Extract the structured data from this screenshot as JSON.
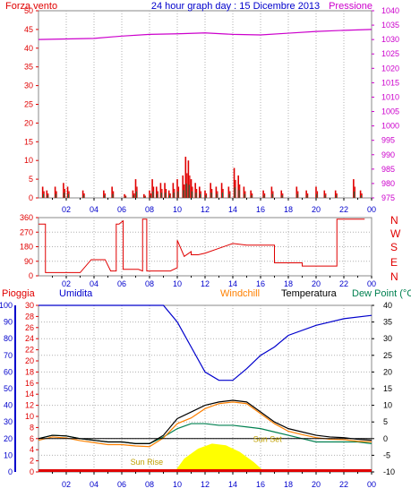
{
  "colors": {
    "wind": "#e00000",
    "pressure": "#cc00cc",
    "title": "#0000cc",
    "rain": "#e00000",
    "humidity": "#0000cc",
    "windchill": "#ff8000",
    "temperature": "#000000",
    "dewpoint": "#008050",
    "sun": "#ffff00",
    "sun_label": "#c0a000",
    "grid": "#b0b0b0",
    "axis": "#000000",
    "x_tick_label": "#0000cc"
  },
  "labels": {
    "left_top": "Forza vento",
    "title": "24 hour graph day : 15 Dicembre 2013",
    "right_top": "Pressione",
    "dir_N_top": "N",
    "dir_W": "W",
    "dir_S": "S",
    "dir_E": "E",
    "dir_N_bottom": "N",
    "pioggia": "Pioggia",
    "umidita": "Umidita",
    "windchill": "Windchill",
    "temperatura": "Temperatura",
    "dewpoint": "Dew Point (°C",
    "sun_rise": "Sun Rise",
    "sun_set": "Sun Set"
  },
  "chart_data": [
    {
      "type": "bar",
      "panel": "wind-pressure",
      "title": "24 hour graph day : 15 Dicembre 2013",
      "x_ticks": [
        "02",
        "04",
        "06",
        "08",
        "10",
        "12",
        "14",
        "16",
        "18",
        "20",
        "22",
        "00"
      ],
      "ylabel_left": "Forza vento",
      "ylim_left": [
        0,
        50
      ],
      "yticks_left": [
        0,
        5,
        10,
        15,
        20,
        25,
        30,
        35,
        40,
        45,
        50
      ],
      "ylabel_right": "Pressione",
      "ylim_right": [
        975,
        1040
      ],
      "yticks_right": [
        975,
        980,
        985,
        990,
        995,
        1000,
        1005,
        1010,
        1015,
        1020,
        1025,
        1030,
        1035,
        1040
      ],
      "wind_gust_bursts": [
        {
          "hour": 0.3,
          "value": 3
        },
        {
          "hour": 0.6,
          "value": 2
        },
        {
          "hour": 1.2,
          "value": 3
        },
        {
          "hour": 1.8,
          "value": 4
        },
        {
          "hour": 2.1,
          "value": 3
        },
        {
          "hour": 3.2,
          "value": 2
        },
        {
          "hour": 4.7,
          "value": 2
        },
        {
          "hour": 5.3,
          "value": 3
        },
        {
          "hour": 6.2,
          "value": 1
        },
        {
          "hour": 6.8,
          "value": 2
        },
        {
          "hour": 7.0,
          "value": 5
        },
        {
          "hour": 7.6,
          "value": 1
        },
        {
          "hour": 8.0,
          "value": 2
        },
        {
          "hour": 8.2,
          "value": 5
        },
        {
          "hour": 8.5,
          "value": 3
        },
        {
          "hour": 8.8,
          "value": 4
        },
        {
          "hour": 9.1,
          "value": 4
        },
        {
          "hour": 9.4,
          "value": 2
        },
        {
          "hour": 9.7,
          "value": 4
        },
        {
          "hour": 10.0,
          "value": 5
        },
        {
          "hour": 10.4,
          "value": 6
        },
        {
          "hour": 10.6,
          "value": 11
        },
        {
          "hour": 10.8,
          "value": 10
        },
        {
          "hour": 11.0,
          "value": 5
        },
        {
          "hour": 11.3,
          "value": 4
        },
        {
          "hour": 11.6,
          "value": 3
        },
        {
          "hour": 12.0,
          "value": 2
        },
        {
          "hour": 12.4,
          "value": 4
        },
        {
          "hour": 12.8,
          "value": 3
        },
        {
          "hour": 13.2,
          "value": 4
        },
        {
          "hour": 13.7,
          "value": 3
        },
        {
          "hour": 14.1,
          "value": 8
        },
        {
          "hour": 14.4,
          "value": 6
        },
        {
          "hour": 14.8,
          "value": 3
        },
        {
          "hour": 15.3,
          "value": 2
        },
        {
          "hour": 16.2,
          "value": 2
        },
        {
          "hour": 16.8,
          "value": 3
        },
        {
          "hour": 17.5,
          "value": 2
        },
        {
          "hour": 18.6,
          "value": 3
        },
        {
          "hour": 19.3,
          "value": 2
        },
        {
          "hour": 20.0,
          "value": 3
        },
        {
          "hour": 20.6,
          "value": 2
        },
        {
          "hour": 21.4,
          "value": 2
        },
        {
          "hour": 22.7,
          "value": 5
        },
        {
          "hour": 23.2,
          "value": 2
        }
      ],
      "pressure": [
        {
          "hour": 0,
          "value": 1030
        },
        {
          "hour": 2,
          "value": 1030.2
        },
        {
          "hour": 4,
          "value": 1030.4
        },
        {
          "hour": 6,
          "value": 1031.2
        },
        {
          "hour": 8,
          "value": 1031.8
        },
        {
          "hour": 10,
          "value": 1032
        },
        {
          "hour": 12,
          "value": 1032.3
        },
        {
          "hour": 14,
          "value": 1031.8
        },
        {
          "hour": 16,
          "value": 1031.6
        },
        {
          "hour": 18,
          "value": 1032.2
        },
        {
          "hour": 20,
          "value": 1032.8
        },
        {
          "hour": 22,
          "value": 1033.2
        },
        {
          "hour": 24,
          "value": 1033.5
        }
      ]
    },
    {
      "type": "line",
      "panel": "wind-direction",
      "ylim": [
        0,
        360
      ],
      "yticks": [
        0,
        90,
        180,
        270,
        360
      ],
      "direction_labels": [
        "N",
        "W",
        "S",
        "E",
        "N"
      ],
      "series": [
        {
          "name": "",
          "x": [
            0,
            0.5,
            0.5,
            1.5,
            2.0,
            3.0,
            3.8,
            4.2,
            4.5,
            4.8,
            5.2,
            5.6,
            5.6,
            5.8,
            6.1,
            6.1,
            6.5,
            6.6,
            7.2,
            7.5,
            7.5,
            7.8,
            7.8,
            8.0,
            8.0,
            9.5,
            10.0,
            10.0,
            10.5,
            11.0,
            11.0,
            11.5,
            12.0,
            12.0,
            13.0,
            13.0,
            14.0,
            14.0,
            15.0,
            17.0,
            17.0,
            19.0,
            19.0,
            21.5,
            21.5,
            23.0,
            23.5
          ],
          "y": [
            320,
            320,
            20,
            20,
            20,
            20,
            100,
            100,
            100,
            100,
            30,
            30,
            320,
            320,
            340,
            40,
            40,
            40,
            40,
            30,
            350,
            350,
            30,
            30,
            30,
            30,
            50,
            220,
            120,
            150,
            130,
            130,
            140,
            140,
            170,
            170,
            200,
            200,
            190,
            190,
            80,
            80,
            60,
            60,
            350,
            350,
            350
          ]
        }
      ]
    },
    {
      "type": "line",
      "panel": "rain-humidity-temperature",
      "ylim_rain": [
        0,
        30
      ],
      "yticks_rain": [
        0,
        2,
        4,
        6,
        8,
        10,
        12,
        14,
        16,
        18,
        20,
        22,
        24,
        26,
        28,
        30
      ],
      "ylim_humidity": [
        0,
        100
      ],
      "yticks_humidity": [
        0,
        10,
        20,
        30,
        40,
        50,
        60,
        70,
        80,
        90,
        100
      ],
      "ylim_temperature": [
        -10,
        40
      ],
      "yticks_temperature": [
        -10,
        -5,
        0,
        5,
        10,
        15,
        20,
        25,
        30,
        35,
        40
      ],
      "series": [
        {
          "name": "Umidita",
          "x": [
            0,
            2,
            4,
            6,
            8,
            9,
            10,
            11,
            12,
            13,
            14,
            15,
            16,
            17,
            18,
            20,
            22,
            24
          ],
          "y": [
            100,
            100,
            100,
            100,
            100,
            100,
            90,
            75,
            60,
            55,
            55,
            62,
            70,
            75,
            82,
            88,
            92,
            94
          ]
        },
        {
          "name": "Temperatura",
          "x": [
            0,
            1,
            2,
            3,
            4,
            5,
            6,
            7,
            8,
            9,
            10,
            11,
            12,
            13,
            14,
            15,
            16,
            17,
            18,
            19,
            20,
            21,
            22,
            23,
            24
          ],
          "y": [
            0,
            1,
            0.8,
            0,
            -0.5,
            -1,
            -1,
            -1.5,
            -1.5,
            1,
            6,
            8,
            10,
            11,
            11.5,
            11,
            8,
            5,
            3,
            2,
            1,
            0.5,
            0.3,
            -0.2,
            -0.5
          ]
        },
        {
          "name": "Windchill",
          "x": [
            0,
            1,
            2,
            3,
            4,
            5,
            6,
            7,
            8,
            9,
            10,
            11,
            12,
            13,
            14,
            15,
            16,
            17,
            18,
            19,
            20,
            21,
            22,
            23,
            24
          ],
          "y": [
            -0.5,
            0.5,
            0.2,
            -0.6,
            -1.2,
            -1.8,
            -1.8,
            -2.2,
            -2.4,
            0.2,
            4.5,
            6.2,
            9,
            10.5,
            11,
            10.5,
            7.5,
            4.5,
            2.2,
            1.2,
            0.3,
            -0.2,
            -0.3,
            -0.8,
            -1
          ]
        },
        {
          "name": "Dew Point (°C",
          "x": [
            0,
            1,
            2,
            3,
            4,
            5,
            6,
            7,
            8,
            9,
            10,
            11,
            12,
            13,
            14,
            15,
            16,
            17,
            18,
            19,
            20,
            21,
            22,
            23,
            24
          ],
          "y": [
            0,
            1,
            0.8,
            0,
            -0.5,
            -1,
            -1,
            -1.5,
            -1.5,
            0.5,
            3,
            4.5,
            4.5,
            4,
            4,
            3.5,
            3,
            2,
            1,
            0,
            -1,
            -1,
            -1,
            -1,
            -1.5
          ]
        },
        {
          "name": "Sun",
          "x": [
            9.8,
            10.5,
            11.5,
            12.5,
            13.5,
            14.5,
            15.5,
            16.3
          ],
          "y": [
            0,
            4,
            7,
            8.5,
            8,
            6,
            3,
            0
          ]
        }
      ],
      "sun_rise_hour": 7.8,
      "sun_set_hour": 16.5
    }
  ]
}
